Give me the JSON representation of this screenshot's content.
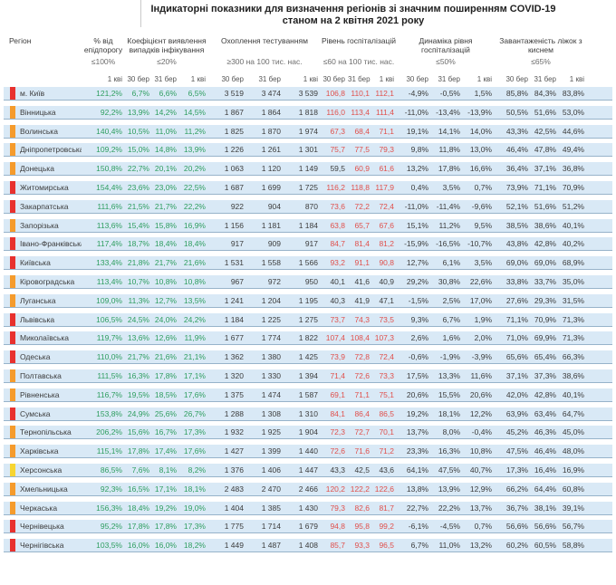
{
  "title": {
    "line1": "Індикаторні показники для визначення регіонів зі значним поширенням COVID-19",
    "line2": "станом на 2 квітня 2021 року"
  },
  "columns": {
    "region_label": "Регіон",
    "groups": [
      {
        "name": "% від епідпорогу",
        "threshold": "≤100%",
        "span": 1
      },
      {
        "name": "Коефіцієнт виявлення випадків інфікування",
        "threshold": "≤20%",
        "span": 3
      },
      {
        "name": "Охоплення тестуванням",
        "threshold": "≥300 на 100 тис. нас.",
        "span": 3
      },
      {
        "name": "Рівень госпіталізацій",
        "threshold": "≤60 на 100 тис. нас.",
        "span": 3
      },
      {
        "name": "Динаміка рівня госпіталізацій",
        "threshold": "≤50%",
        "span": 3
      },
      {
        "name": "Завантаженість ліжок з киснем",
        "threshold": "≤65%",
        "span": 3
      }
    ],
    "date_single": "1 кві",
    "dates_triple": [
      "30 бер",
      "31 бер",
      "1 кві"
    ]
  },
  "colors": {
    "marker_red": "#e8312e",
    "marker_orange": "#f59b2c",
    "marker_yellow": "#f7d531",
    "value_green": "#2f9e60",
    "value_red": "#e0504c",
    "row_bg": "#d9e9f6",
    "row_border": "#97b3ca"
  },
  "hosp_threshold": 60,
  "rows": [
    {
      "region": "м. Київ",
      "marker": "red",
      "epid": "121,2%",
      "coef": [
        "6,7%",
        "6,6%",
        "6,5%"
      ],
      "test": [
        "3 519",
        "3 474",
        "3 539"
      ],
      "hosp": [
        "106,8",
        "110,1",
        "112,1"
      ],
      "dyn": [
        "-4,9%",
        "-0,5%",
        "1,5%"
      ],
      "bed": [
        "85,8%",
        "84,3%",
        "83,8%"
      ]
    },
    {
      "region": "Вінницька",
      "marker": "orange",
      "epid": "92,2%",
      "coef": [
        "13,9%",
        "14,2%",
        "14,5%"
      ],
      "test": [
        "1 867",
        "1 864",
        "1 818"
      ],
      "hosp": [
        "116,0",
        "113,4",
        "111,4"
      ],
      "dyn": [
        "-11,0%",
        "-13,4%",
        "-13,9%"
      ],
      "bed": [
        "50,5%",
        "51,6%",
        "53,0%"
      ]
    },
    {
      "region": "Волинська",
      "marker": "orange",
      "epid": "140,4%",
      "coef": [
        "10,5%",
        "11,0%",
        "11,2%"
      ],
      "test": [
        "1 825",
        "1 870",
        "1 974"
      ],
      "hosp": [
        "67,3",
        "68,4",
        "71,1"
      ],
      "dyn": [
        "19,1%",
        "14,1%",
        "14,0%"
      ],
      "bed": [
        "43,3%",
        "42,5%",
        "44,6%"
      ]
    },
    {
      "region": "Дніпропетровська",
      "marker": "orange",
      "epid": "109,2%",
      "coef": [
        "15,0%",
        "14,8%",
        "13,9%"
      ],
      "test": [
        "1 226",
        "1 261",
        "1 301"
      ],
      "hosp": [
        "75,7",
        "77,5",
        "79,3"
      ],
      "dyn": [
        "9,8%",
        "11,8%",
        "13,0%"
      ],
      "bed": [
        "46,4%",
        "47,8%",
        "49,4%"
      ]
    },
    {
      "region": "Донецька",
      "marker": "orange",
      "epid": "150,8%",
      "coef": [
        "22,7%",
        "20,1%",
        "20,2%"
      ],
      "test": [
        "1 063",
        "1 120",
        "1 149"
      ],
      "hosp": [
        "59,5",
        "60,9",
        "61,6"
      ],
      "dyn": [
        "13,2%",
        "17,8%",
        "16,6%"
      ],
      "bed": [
        "36,4%",
        "37,1%",
        "36,8%"
      ]
    },
    {
      "region": "Житомирська",
      "marker": "red",
      "epid": "154,4%",
      "coef": [
        "23,6%",
        "23,0%",
        "22,5%"
      ],
      "test": [
        "1 687",
        "1 699",
        "1 725"
      ],
      "hosp": [
        "116,2",
        "118,8",
        "117,9"
      ],
      "dyn": [
        "0,4%",
        "3,5%",
        "0,7%"
      ],
      "bed": [
        "73,9%",
        "71,1%",
        "70,9%"
      ]
    },
    {
      "region": "Закарпатська",
      "marker": "red",
      "epid": "111,6%",
      "coef": [
        "21,5%",
        "21,7%",
        "22,2%"
      ],
      "test": [
        "922",
        "904",
        "870"
      ],
      "hosp": [
        "73,6",
        "72,2",
        "72,4"
      ],
      "dyn": [
        "-11,0%",
        "-11,4%",
        "-9,6%"
      ],
      "bed": [
        "52,1%",
        "51,6%",
        "51,2%"
      ]
    },
    {
      "region": "Запорізька",
      "marker": "orange",
      "epid": "113,6%",
      "coef": [
        "15,4%",
        "15,8%",
        "16,9%"
      ],
      "test": [
        "1 156",
        "1 181",
        "1 184"
      ],
      "hosp": [
        "63,8",
        "65,7",
        "67,6"
      ],
      "dyn": [
        "15,1%",
        "11,2%",
        "9,5%"
      ],
      "bed": [
        "38,5%",
        "38,6%",
        "40,1%"
      ]
    },
    {
      "region": "Івано-Франківська",
      "marker": "red",
      "epid": "117,4%",
      "coef": [
        "18,7%",
        "18,4%",
        "18,4%"
      ],
      "test": [
        "917",
        "909",
        "917"
      ],
      "hosp": [
        "84,7",
        "81,4",
        "81,2"
      ],
      "dyn": [
        "-15,9%",
        "-16,5%",
        "-10,7%"
      ],
      "bed": [
        "43,8%",
        "42,8%",
        "40,2%"
      ]
    },
    {
      "region": "Київська",
      "marker": "red",
      "epid": "133,4%",
      "coef": [
        "21,8%",
        "21,7%",
        "21,6%"
      ],
      "test": [
        "1 531",
        "1 558",
        "1 566"
      ],
      "hosp": [
        "93,2",
        "91,1",
        "90,8"
      ],
      "dyn": [
        "12,7%",
        "6,1%",
        "3,5%"
      ],
      "bed": [
        "69,0%",
        "69,0%",
        "68,9%"
      ]
    },
    {
      "region": "Кіровоградська",
      "marker": "orange",
      "epid": "113,4%",
      "coef": [
        "10,7%",
        "10,8%",
        "10,8%"
      ],
      "test": [
        "967",
        "972",
        "950"
      ],
      "hosp": [
        "40,1",
        "41,6",
        "40,9"
      ],
      "dyn": [
        "29,2%",
        "30,8%",
        "22,6%"
      ],
      "bed": [
        "33,8%",
        "33,7%",
        "35,0%"
      ]
    },
    {
      "region": "Луганська",
      "marker": "orange",
      "epid": "109,0%",
      "coef": [
        "11,3%",
        "12,7%",
        "13,5%"
      ],
      "test": [
        "1 241",
        "1 204",
        "1 195"
      ],
      "hosp": [
        "40,3",
        "41,9",
        "47,1"
      ],
      "dyn": [
        "-1,5%",
        "2,5%",
        "17,0%"
      ],
      "bed": [
        "27,6%",
        "29,3%",
        "31,5%"
      ]
    },
    {
      "region": "Львівська",
      "marker": "red",
      "epid": "106,5%",
      "coef": [
        "24,5%",
        "24,0%",
        "24,2%"
      ],
      "test": [
        "1 184",
        "1 225",
        "1 275"
      ],
      "hosp": [
        "73,7",
        "74,3",
        "73,5"
      ],
      "dyn": [
        "9,3%",
        "6,7%",
        "1,9%"
      ],
      "bed": [
        "71,1%",
        "70,9%",
        "71,3%"
      ]
    },
    {
      "region": "Миколаївська",
      "marker": "red",
      "epid": "119,7%",
      "coef": [
        "13,6%",
        "12,6%",
        "11,9%"
      ],
      "test": [
        "1 677",
        "1 774",
        "1 822"
      ],
      "hosp": [
        "107,4",
        "108,4",
        "107,3"
      ],
      "dyn": [
        "2,6%",
        "1,6%",
        "2,0%"
      ],
      "bed": [
        "71,0%",
        "69,9%",
        "71,3%"
      ]
    },
    {
      "region": "Одеська",
      "marker": "red",
      "epid": "110,0%",
      "coef": [
        "21,7%",
        "21,6%",
        "21,1%"
      ],
      "test": [
        "1 362",
        "1 380",
        "1 425"
      ],
      "hosp": [
        "73,9",
        "72,8",
        "72,4"
      ],
      "dyn": [
        "-0,6%",
        "-1,9%",
        "-3,9%"
      ],
      "bed": [
        "65,6%",
        "65,4%",
        "66,3%"
      ]
    },
    {
      "region": "Полтавська",
      "marker": "orange",
      "epid": "111,5%",
      "coef": [
        "16,3%",
        "17,8%",
        "17,1%"
      ],
      "test": [
        "1 320",
        "1 330",
        "1 394"
      ],
      "hosp": [
        "71,4",
        "72,6",
        "73,3"
      ],
      "dyn": [
        "17,5%",
        "13,3%",
        "11,6%"
      ],
      "bed": [
        "37,1%",
        "37,3%",
        "38,6%"
      ]
    },
    {
      "region": "Рівненська",
      "marker": "orange",
      "epid": "116,7%",
      "coef": [
        "19,5%",
        "18,5%",
        "17,6%"
      ],
      "test": [
        "1 375",
        "1 474",
        "1 587"
      ],
      "hosp": [
        "69,1",
        "71,1",
        "75,1"
      ],
      "dyn": [
        "20,6%",
        "15,5%",
        "20,6%"
      ],
      "bed": [
        "42,0%",
        "42,8%",
        "40,1%"
      ]
    },
    {
      "region": "Сумська",
      "marker": "red",
      "epid": "153,8%",
      "coef": [
        "24,9%",
        "25,6%",
        "26,7%"
      ],
      "test": [
        "1 288",
        "1 308",
        "1 310"
      ],
      "hosp": [
        "84,1",
        "86,4",
        "86,5"
      ],
      "dyn": [
        "19,2%",
        "18,1%",
        "12,2%"
      ],
      "bed": [
        "63,9%",
        "63,4%",
        "64,7%"
      ]
    },
    {
      "region": "Тернопільська",
      "marker": "orange",
      "epid": "206,2%",
      "coef": [
        "15,6%",
        "16,7%",
        "17,3%"
      ],
      "test": [
        "1 932",
        "1 925",
        "1 904"
      ],
      "hosp": [
        "72,3",
        "72,7",
        "70,1"
      ],
      "dyn": [
        "13,7%",
        "8,0%",
        "-0,4%"
      ],
      "bed": [
        "45,2%",
        "46,3%",
        "45,0%"
      ]
    },
    {
      "region": "Харківська",
      "marker": "orange",
      "epid": "115,1%",
      "coef": [
        "17,8%",
        "17,4%",
        "17,6%"
      ],
      "test": [
        "1 427",
        "1 399",
        "1 440"
      ],
      "hosp": [
        "72,6",
        "71,6",
        "71,2"
      ],
      "dyn": [
        "23,3%",
        "16,3%",
        "10,8%"
      ],
      "bed": [
        "47,5%",
        "46,4%",
        "48,0%"
      ]
    },
    {
      "region": "Херсонська",
      "marker": "yellow",
      "epid": "86,5%",
      "coef": [
        "7,6%",
        "8,1%",
        "8,2%"
      ],
      "test": [
        "1 376",
        "1 406",
        "1 447"
      ],
      "hosp": [
        "43,3",
        "42,5",
        "43,6"
      ],
      "dyn": [
        "64,1%",
        "47,5%",
        "40,7%"
      ],
      "bed": [
        "17,3%",
        "16,4%",
        "16,9%"
      ]
    },
    {
      "region": "Хмельницька",
      "marker": "orange",
      "epid": "92,3%",
      "coef": [
        "16,5%",
        "17,1%",
        "18,1%"
      ],
      "test": [
        "2 483",
        "2 470",
        "2 466"
      ],
      "hosp": [
        "120,2",
        "122,2",
        "122,6"
      ],
      "dyn": [
        "13,8%",
        "13,9%",
        "12,9%"
      ],
      "bed": [
        "66,2%",
        "64,4%",
        "60,8%"
      ]
    },
    {
      "region": "Черкаська",
      "marker": "orange",
      "epid": "156,3%",
      "coef": [
        "18,4%",
        "19,2%",
        "19,0%"
      ],
      "test": [
        "1 404",
        "1 385",
        "1 430"
      ],
      "hosp": [
        "79,3",
        "82,6",
        "81,7"
      ],
      "dyn": [
        "22,7%",
        "22,2%",
        "13,7%"
      ],
      "bed": [
        "36,7%",
        "38,1%",
        "39,1%"
      ]
    },
    {
      "region": "Чернівецька",
      "marker": "red",
      "epid": "95,2%",
      "coef": [
        "17,8%",
        "17,8%",
        "17,3%"
      ],
      "test": [
        "1 775",
        "1 714",
        "1 679"
      ],
      "hosp": [
        "94,8",
        "95,8",
        "99,2"
      ],
      "dyn": [
        "-6,1%",
        "-4,5%",
        "0,7%"
      ],
      "bed": [
        "56,6%",
        "56,6%",
        "56,7%"
      ]
    },
    {
      "region": "Чернігівська",
      "marker": "red",
      "epid": "103,5%",
      "coef": [
        "16,0%",
        "16,0%",
        "18,2%"
      ],
      "test": [
        "1 449",
        "1 487",
        "1 408"
      ],
      "hosp": [
        "85,7",
        "93,3",
        "96,5"
      ],
      "dyn": [
        "6,7%",
        "11,0%",
        "13,2%"
      ],
      "bed": [
        "60,2%",
        "60,5%",
        "58,8%"
      ]
    }
  ]
}
